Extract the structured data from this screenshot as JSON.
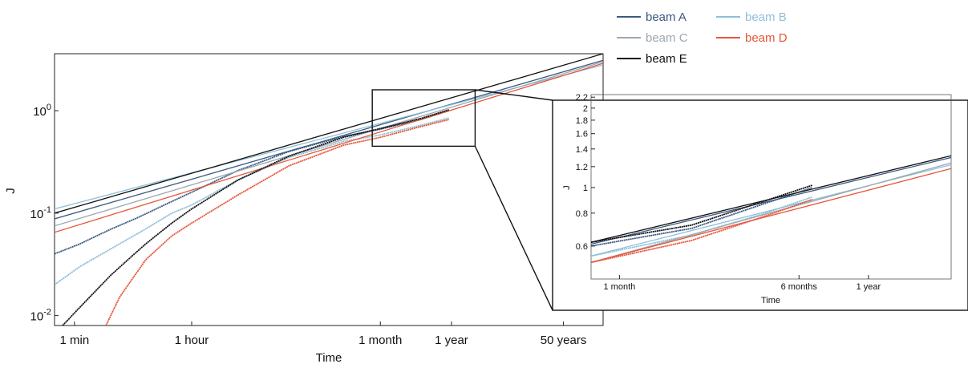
{
  "chart_data": [
    {
      "type": "line",
      "role": "main",
      "xlabel": "Time",
      "ylabel": "J",
      "x_scale": "log",
      "y_scale": "log",
      "x_unit": "hours",
      "xlim": [
        0.0083,
        1750000
      ],
      "ylim": [
        0.008,
        3.6
      ],
      "x_ticks": [
        {
          "label": "1 min",
          "value": 0.01667
        },
        {
          "label": "1 hour",
          "value": 1
        },
        {
          "label": "1 month",
          "value": 730
        },
        {
          "label": "1 year",
          "value": 8760
        },
        {
          "label": "50 years",
          "value": 438000
        }
      ],
      "y_ticks": [
        {
          "base": "10",
          "exp": "-2",
          "value": 0.01
        },
        {
          "base": "10",
          "exp": "-1",
          "value": 0.1
        },
        {
          "base": "10",
          "exp": "0",
          "value": 1
        }
      ],
      "series": [
        {
          "name": "beam A",
          "color": "#3b5a82",
          "fit": [
            [
              0.0083,
              0.088
            ],
            [
              1750000,
              3.1
            ]
          ],
          "data": [
            [
              0.0083,
              0.04
            ],
            [
              0.02,
              0.05
            ],
            [
              0.06,
              0.07
            ],
            [
              0.15,
              0.09
            ],
            [
              0.5,
              0.13
            ],
            [
              1,
              0.16
            ],
            [
              5,
              0.26
            ],
            [
              30,
              0.4
            ],
            [
              200,
              0.56
            ],
            [
              730,
              0.66
            ],
            [
              3000,
              0.82
            ],
            [
              8000,
              1.0
            ]
          ]
        },
        {
          "name": "beam B",
          "color": "#8fbfd8",
          "fit": [
            [
              0.0083,
              0.11
            ],
            [
              1750000,
              2.8
            ]
          ],
          "data": [
            [
              0.0083,
              0.02
            ],
            [
              0.02,
              0.03
            ],
            [
              0.06,
              0.045
            ],
            [
              0.2,
              0.07
            ],
            [
              0.5,
              0.1
            ],
            [
              1,
              0.12
            ],
            [
              5,
              0.21
            ],
            [
              30,
              0.35
            ],
            [
              200,
              0.5
            ],
            [
              730,
              0.58
            ],
            [
              3000,
              0.72
            ],
            [
              8000,
              0.85
            ]
          ]
        },
        {
          "name": "beam C",
          "color": "#9aa8b0",
          "fit": [
            [
              0.0083,
              0.075
            ],
            [
              1750000,
              3.0
            ]
          ]
        },
        {
          "name": "beam D",
          "color": "#e8553a",
          "fit": [
            [
              0.0083,
              0.065
            ],
            [
              1750000,
              2.9
            ]
          ],
          "data": [
            [
              0.05,
              0.008
            ],
            [
              0.08,
              0.015
            ],
            [
              0.2,
              0.035
            ],
            [
              0.5,
              0.06
            ],
            [
              1,
              0.08
            ],
            [
              5,
              0.15
            ],
            [
              30,
              0.29
            ],
            [
              200,
              0.46
            ],
            [
              730,
              0.55
            ],
            [
              3000,
              0.7
            ],
            [
              8000,
              0.82
            ]
          ]
        },
        {
          "name": "beam E",
          "color": "#111111",
          "fit": [
            [
              0.0083,
              0.1
            ],
            [
              1750000,
              3.6
            ]
          ],
          "data": [
            [
              0.011,
              0.008
            ],
            [
              0.02,
              0.012
            ],
            [
              0.06,
              0.025
            ],
            [
              0.2,
              0.05
            ],
            [
              0.5,
              0.08
            ],
            [
              1,
              0.11
            ],
            [
              5,
              0.21
            ],
            [
              30,
              0.36
            ],
            [
              200,
              0.55
            ],
            [
              730,
              0.67
            ],
            [
              3000,
              0.84
            ],
            [
              8000,
              1.02
            ]
          ]
        }
      ],
      "zoom_region": {
        "x": [
          550,
          20000
        ],
        "y": [
          0.45,
          1.6
        ]
      },
      "legend": "top-right"
    },
    {
      "type": "line",
      "role": "inset",
      "xlabel": "Time",
      "ylabel": "J",
      "x_scale": "log",
      "y_scale": "log",
      "x_unit": "hours",
      "xlim": [
        550,
        20000
      ],
      "ylim": [
        0.45,
        2.25
      ],
      "x_ticks": [
        {
          "label": "1 month",
          "value": 730
        },
        {
          "label": "6 months",
          "value": 4380
        },
        {
          "label": "1 year",
          "value": 8760
        }
      ],
      "y_ticks": [
        {
          "label": "0.6",
          "value": 0.6
        },
        {
          "label": "0.8",
          "value": 0.8
        },
        {
          "label": "1",
          "value": 1
        },
        {
          "label": "1.2",
          "value": 1.2
        },
        {
          "label": "1.4",
          "value": 1.4
        },
        {
          "label": "1.6",
          "value": 1.6
        },
        {
          "label": "1.8",
          "value": 1.8
        },
        {
          "label": "2",
          "value": 2
        },
        {
          "label": "2.2",
          "value": 2.2
        }
      ],
      "series": [
        {
          "name": "beam A",
          "color": "#3b5a82",
          "fit": [
            [
              550,
              0.61
            ],
            [
              20000,
              1.3
            ]
          ],
          "data": [
            [
              550,
              0.6
            ],
            [
              1500,
              0.7
            ],
            [
              3000,
              0.86
            ],
            [
              5000,
              1.0
            ]
          ]
        },
        {
          "name": "beam B",
          "color": "#8fbfd8",
          "fit": [
            [
              550,
              0.55
            ],
            [
              20000,
              1.22
            ]
          ],
          "data": [
            [
              550,
              0.55
            ],
            [
              1500,
              0.66
            ],
            [
              3000,
              0.79
            ],
            [
              5000,
              0.92
            ]
          ]
        },
        {
          "name": "beam C",
          "color": "#9aa8b0",
          "fit": [
            [
              550,
              0.52
            ],
            [
              20000,
              1.24
            ]
          ]
        },
        {
          "name": "beam D",
          "color": "#e8553a",
          "fit": [
            [
              550,
              0.52
            ],
            [
              20000,
              1.18
            ]
          ],
          "data": [
            [
              550,
              0.52
            ],
            [
              1500,
              0.63
            ],
            [
              3000,
              0.77
            ],
            [
              5000,
              0.9
            ]
          ]
        },
        {
          "name": "beam E",
          "color": "#111111",
          "fit": [
            [
              550,
              0.62
            ],
            [
              20000,
              1.32
            ]
          ],
          "data": [
            [
              550,
              0.62
            ],
            [
              1500,
              0.72
            ],
            [
              3000,
              0.88
            ],
            [
              5000,
              1.02
            ]
          ]
        }
      ]
    }
  ]
}
